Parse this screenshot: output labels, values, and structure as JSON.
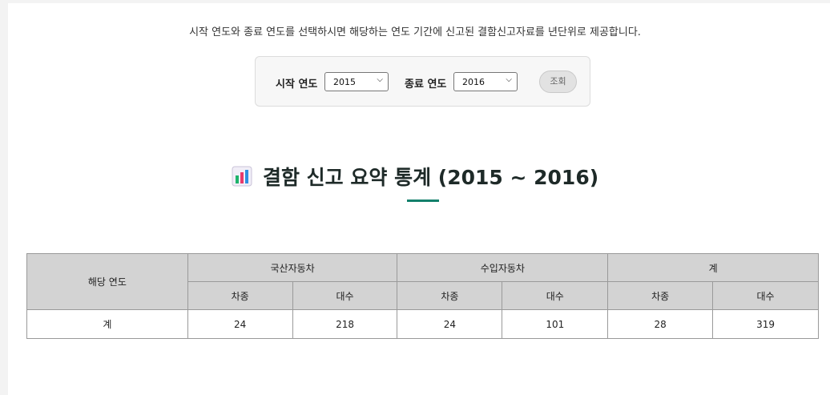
{
  "intro_text": "시작 연도와 종료 연도를 선택하시면 해당하는 연도 기간에 신고된 결함신고자료를 년단위로 제공합니다.",
  "filter": {
    "start_label": "시작 연도",
    "start_value": "2015",
    "end_label": "종료 연도",
    "end_value": "2016",
    "query_button": "조회"
  },
  "summary_title": "결함 신고 요약 통계 (2015 ~ 2016)",
  "title_icon": "bar-chart-icon",
  "table": {
    "year_header": "해당 연도",
    "group_headers": [
      "국산자동차",
      "수입자동차",
      "계"
    ],
    "sub_headers": [
      "차종",
      "대수",
      "차종",
      "대수",
      "차종",
      "대수"
    ],
    "rows": [
      {
        "year": "계",
        "values": [
          "24",
          "218",
          "24",
          "101",
          "28",
          "319"
        ]
      }
    ]
  },
  "colors": {
    "accent": "#13806b",
    "header_bg": "#d3d3d3"
  }
}
